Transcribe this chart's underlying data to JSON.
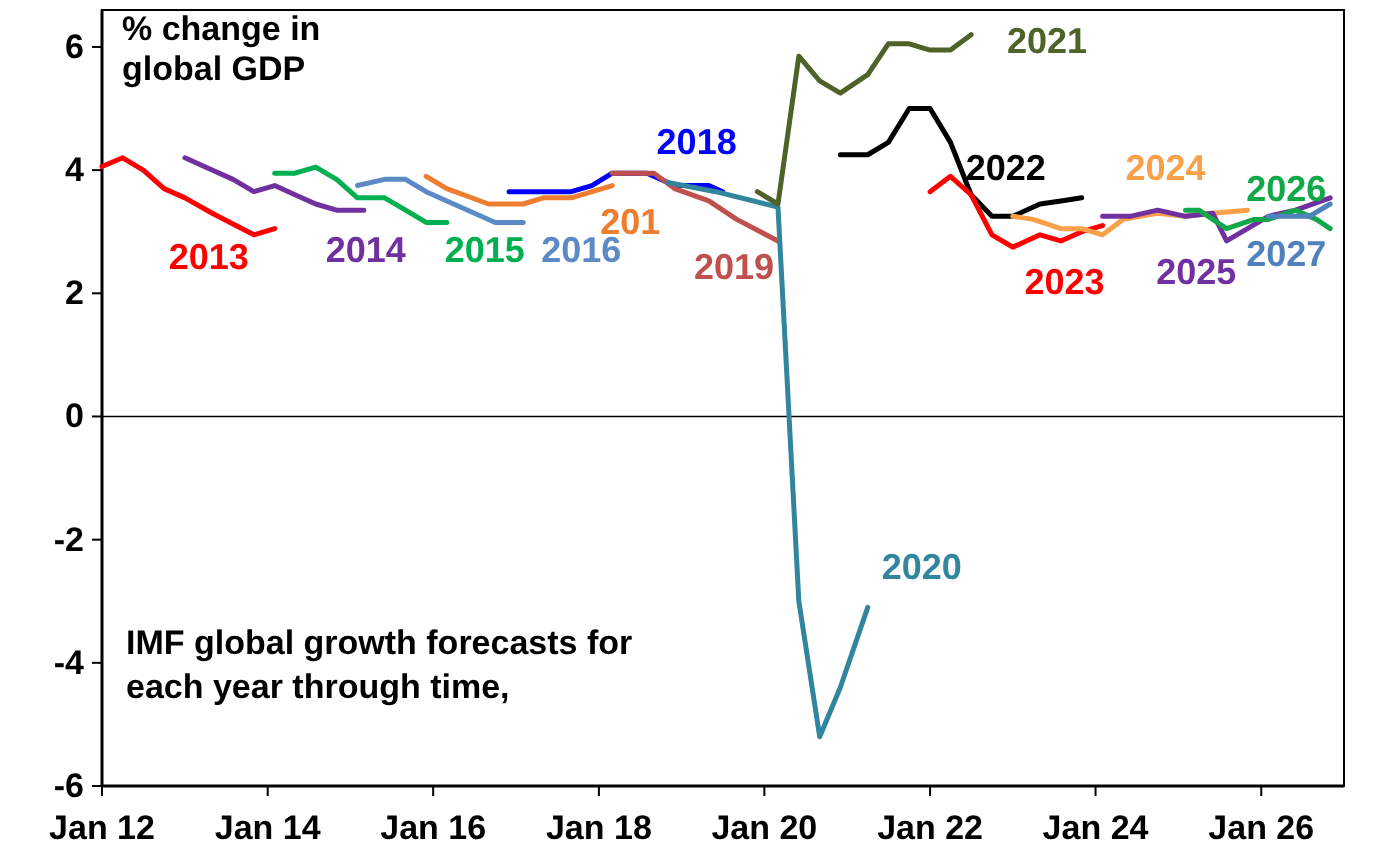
{
  "chart_data": {
    "type": "line",
    "ylabel": "% change in global GDP",
    "annotations": [
      "IMF global growth forecasts for each year through time,"
    ],
    "xlim": [
      "2012-01",
      "2027-01"
    ],
    "xticks": [
      {
        "value": "2012-01",
        "label": "Jan 12"
      },
      {
        "value": "2014-01",
        "label": "Jan 14"
      },
      {
        "value": "2016-01",
        "label": "Jan 16"
      },
      {
        "value": "2018-01",
        "label": "Jan 18"
      },
      {
        "value": "2020-01",
        "label": "Jan 20"
      },
      {
        "value": "2022-01",
        "label": "Jan 22"
      },
      {
        "value": "2024-01",
        "label": "Jan 24"
      },
      {
        "value": "2026-01",
        "label": "Jan 26"
      }
    ],
    "ylim": [
      -6,
      6.6
    ],
    "yticks": [
      -6,
      -4,
      -2,
      0,
      2,
      4,
      6
    ],
    "ref_lines": [
      {
        "axis": "y",
        "value": 0,
        "color": "#000000"
      }
    ],
    "grid": false,
    "legend": false,
    "marker": "none",
    "line_style": "solid",
    "series": [
      {
        "name": "2013",
        "color": "#ff0000",
        "x": [
          "2012-01",
          "2012-04",
          "2012-07",
          "2012-10",
          "2013-01",
          "2013-05",
          "2013-11",
          "2014-02"
        ],
        "values": [
          4.06,
          4.2,
          4.0,
          3.7,
          3.55,
          3.3,
          2.95,
          3.05
        ]
      },
      {
        "name": "2014",
        "color": "#7030a0",
        "x": [
          "2013-01",
          "2013-04",
          "2013-08",
          "2013-11",
          "2014-02",
          "2014-05",
          "2014-08",
          "2014-11",
          "2015-03"
        ],
        "values": [
          4.2,
          4.05,
          3.85,
          3.65,
          3.75,
          3.6,
          3.45,
          3.35,
          3.35
        ]
      },
      {
        "name": "2015",
        "color": "#00b050",
        "x": [
          "2014-02",
          "2014-05",
          "2014-08",
          "2014-11",
          "2015-02",
          "2015-06",
          "2015-09",
          "2015-12",
          "2016-03"
        ],
        "values": [
          3.95,
          3.95,
          4.05,
          3.85,
          3.55,
          3.55,
          3.35,
          3.15,
          3.15
        ]
      },
      {
        "name": "2016",
        "color": "#5b8ac6",
        "x": [
          "2015-02",
          "2015-06",
          "2015-09",
          "2015-12",
          "2016-03",
          "2016-07",
          "2016-10",
          "2017-02"
        ],
        "values": [
          3.75,
          3.85,
          3.85,
          3.65,
          3.5,
          3.3,
          3.15,
          3.15
        ]
      },
      {
        "name": "201",
        "color": "#ed7d31",
        "x": [
          "2015-12",
          "2016-03",
          "2016-09",
          "2017-02",
          "2017-05",
          "2017-09",
          "2018-03"
        ],
        "values": [
          3.9,
          3.7,
          3.45,
          3.45,
          3.55,
          3.55,
          3.75
        ]
      },
      {
        "name": "2018",
        "color": "#0000ff",
        "x": [
          "2016-12",
          "2017-09",
          "2017-12",
          "2018-03",
          "2018-08",
          "2018-12",
          "2019-05",
          "2019-07"
        ],
        "values": [
          3.65,
          3.65,
          3.75,
          3.95,
          3.95,
          3.75,
          3.75,
          3.65
        ]
      },
      {
        "name": "2019",
        "color": "#c0504d",
        "x": [
          "2018-03",
          "2018-09",
          "2018-12",
          "2019-05",
          "2019-09",
          "2020-03"
        ],
        "values": [
          3.95,
          3.95,
          3.7,
          3.5,
          3.2,
          2.85
        ]
      },
      {
        "name": "2020",
        "color": "#31859c",
        "x": [
          "2018-11",
          "2019-06",
          "2020-03",
          "2020-06",
          "2020-09",
          "2020-12",
          "2021-04"
        ],
        "values": [
          3.8,
          3.65,
          3.4,
          -3.0,
          -5.2,
          -4.4,
          -3.1
        ]
      },
      {
        "name": "2021",
        "color": "#4f6228",
        "x": [
          "2019-12",
          "2020-03",
          "2020-06",
          "2020-09",
          "2020-12",
          "2021-04",
          "2021-07",
          "2021-10",
          "2022-01",
          "2022-04",
          "2022-07"
        ],
        "values": [
          3.65,
          3.45,
          5.85,
          5.45,
          5.25,
          5.55,
          6.05,
          6.05,
          5.95,
          5.95,
          6.2
        ]
      },
      {
        "name": "2022",
        "color": "#000000",
        "x": [
          "2020-12",
          "2021-04",
          "2021-07",
          "2021-10",
          "2022-01",
          "2022-04",
          "2022-07",
          "2022-10",
          "2023-01",
          "2023-05",
          "2023-08",
          "2023-11"
        ],
        "values": [
          4.25,
          4.25,
          4.45,
          5.0,
          5.0,
          4.45,
          3.6,
          3.25,
          3.25,
          3.45,
          3.5,
          3.55
        ]
      },
      {
        "name": "2023",
        "color": "#ff0000",
        "x": [
          "2022-01",
          "2022-04",
          "2022-07",
          "2022-10",
          "2023-01",
          "2023-05",
          "2023-08",
          "2023-11",
          "2024-02"
        ],
        "values": [
          3.65,
          3.9,
          3.6,
          2.95,
          2.75,
          2.95,
          2.85,
          3.0,
          3.1
        ]
      },
      {
        "name": "2024",
        "color": "#f9a048",
        "x": [
          "2023-01",
          "2023-04",
          "2023-08",
          "2023-11",
          "2024-02",
          "2024-05",
          "2024-10",
          "2025-02",
          "2025-06",
          "2025-11"
        ],
        "values": [
          3.25,
          3.2,
          3.05,
          3.05,
          2.95,
          3.2,
          3.3,
          3.25,
          3.3,
          3.35
        ]
      },
      {
        "name": "2025",
        "color": "#7030a0",
        "x": [
          "2024-02",
          "2024-06",
          "2024-10",
          "2025-02",
          "2025-06",
          "2025-08",
          "2025-11",
          "2026-02",
          "2026-06",
          "2026-11"
        ],
        "values": [
          3.25,
          3.25,
          3.35,
          3.25,
          3.3,
          2.85,
          3.05,
          3.25,
          3.35,
          3.55
        ]
      },
      {
        "name": "2026",
        "color": "#12a84a",
        "x": [
          "2025-02",
          "2025-04",
          "2025-08",
          "2025-12",
          "2026-02",
          "2026-06",
          "2026-09",
          "2026-11"
        ],
        "values": [
          3.35,
          3.35,
          3.05,
          3.2,
          3.2,
          3.35,
          3.2,
          3.05
        ]
      },
      {
        "name": "2027",
        "color": "#4f81bd",
        "x": [
          "2026-02",
          "2026-08",
          "2026-11"
        ],
        "values": [
          3.25,
          3.25,
          3.45
        ]
      }
    ]
  }
}
